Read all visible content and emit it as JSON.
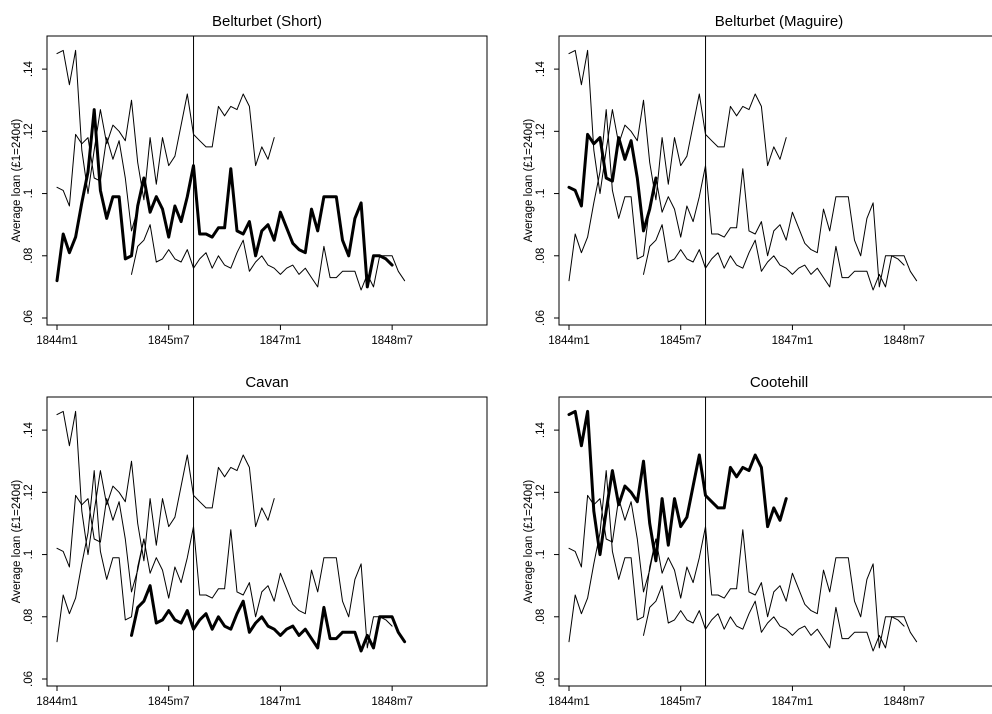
{
  "chart_data": {
    "type": "line",
    "ylabel": "Average loan (£1=240d)",
    "ylim": [
      0.06,
      0.15
    ],
    "xlim": [
      0,
      63
    ],
    "yticks": [
      {
        "v": 0.06,
        "label": ".06"
      },
      {
        "v": 0.08,
        "label": ".08"
      },
      {
        "v": 0.1,
        "label": ".1"
      },
      {
        "v": 0.12,
        "label": ".12"
      },
      {
        "v": 0.14,
        "label": ".14"
      }
    ],
    "xticks": [
      {
        "v": 0,
        "label": "1844m1"
      },
      {
        "v": 18,
        "label": "1845m7"
      },
      {
        "v": 36,
        "label": "1847m1"
      },
      {
        "v": 54,
        "label": "1848m7"
      }
    ],
    "vline_x": 22,
    "panels": [
      {
        "title": "Belturbet (Short)",
        "highlight": 0
      },
      {
        "title": "Belturbet (Maguire)",
        "highlight": 1
      },
      {
        "title": "Cavan",
        "highlight": 2
      },
      {
        "title": "Cootehill",
        "highlight": 3
      }
    ],
    "series": [
      {
        "start": 0,
        "values": [
          0.072,
          0.087,
          0.081,
          0.086,
          0.097,
          0.107,
          0.127,
          0.101,
          0.092,
          0.099,
          0.099,
          0.079,
          0.08,
          0.096,
          0.105,
          0.094,
          0.099,
          0.095,
          0.086,
          0.096,
          0.091,
          0.099,
          0.109,
          0.087,
          0.087,
          0.086,
          0.089,
          0.089,
          0.108,
          0.088,
          0.087,
          0.091,
          0.08,
          0.088,
          0.09,
          0.085,
          0.094,
          0.089,
          0.084,
          0.082,
          0.081,
          0.095,
          0.088,
          0.099,
          0.099,
          0.099,
          0.085,
          0.08,
          0.092,
          0.097,
          0.07,
          0.08,
          0.08,
          0.079,
          0.077
        ]
      },
      {
        "start": 0,
        "values": [
          0.102,
          0.101,
          0.096,
          0.119,
          0.116,
          0.118,
          0.105,
          0.104,
          0.118,
          0.111,
          0.117,
          0.105,
          0.088,
          0.095,
          0.105
        ]
      },
      {
        "start": 12,
        "values": [
          0.074,
          0.083,
          0.085,
          0.09,
          0.078,
          0.079,
          0.082,
          0.079,
          0.078,
          0.082,
          0.076,
          0.079,
          0.081,
          0.076,
          0.08,
          0.077,
          0.076,
          0.081,
          0.085,
          0.075,
          0.078,
          0.08,
          0.077,
          0.076,
          0.074,
          0.076,
          0.077,
          0.074,
          0.076,
          0.073,
          0.07,
          0.083,
          0.073,
          0.073,
          0.075,
          0.075,
          0.075,
          0.069,
          0.074,
          0.07,
          0.08,
          0.08,
          0.08,
          0.075,
          0.072
        ]
      },
      {
        "start": 0,
        "values": [
          0.145,
          0.146,
          0.135,
          0.146,
          0.114,
          0.1,
          0.114,
          0.127,
          0.116,
          0.122,
          0.12,
          0.117,
          0.13,
          0.11,
          0.098,
          0.118,
          0.103,
          0.118,
          0.109,
          0.112,
          0.122,
          0.132,
          0.119,
          0.117,
          0.115,
          0.115,
          0.128,
          0.125,
          0.128,
          0.127,
          0.132,
          0.128,
          0.109,
          0.115,
          0.111,
          0.118
        ]
      }
    ]
  }
}
